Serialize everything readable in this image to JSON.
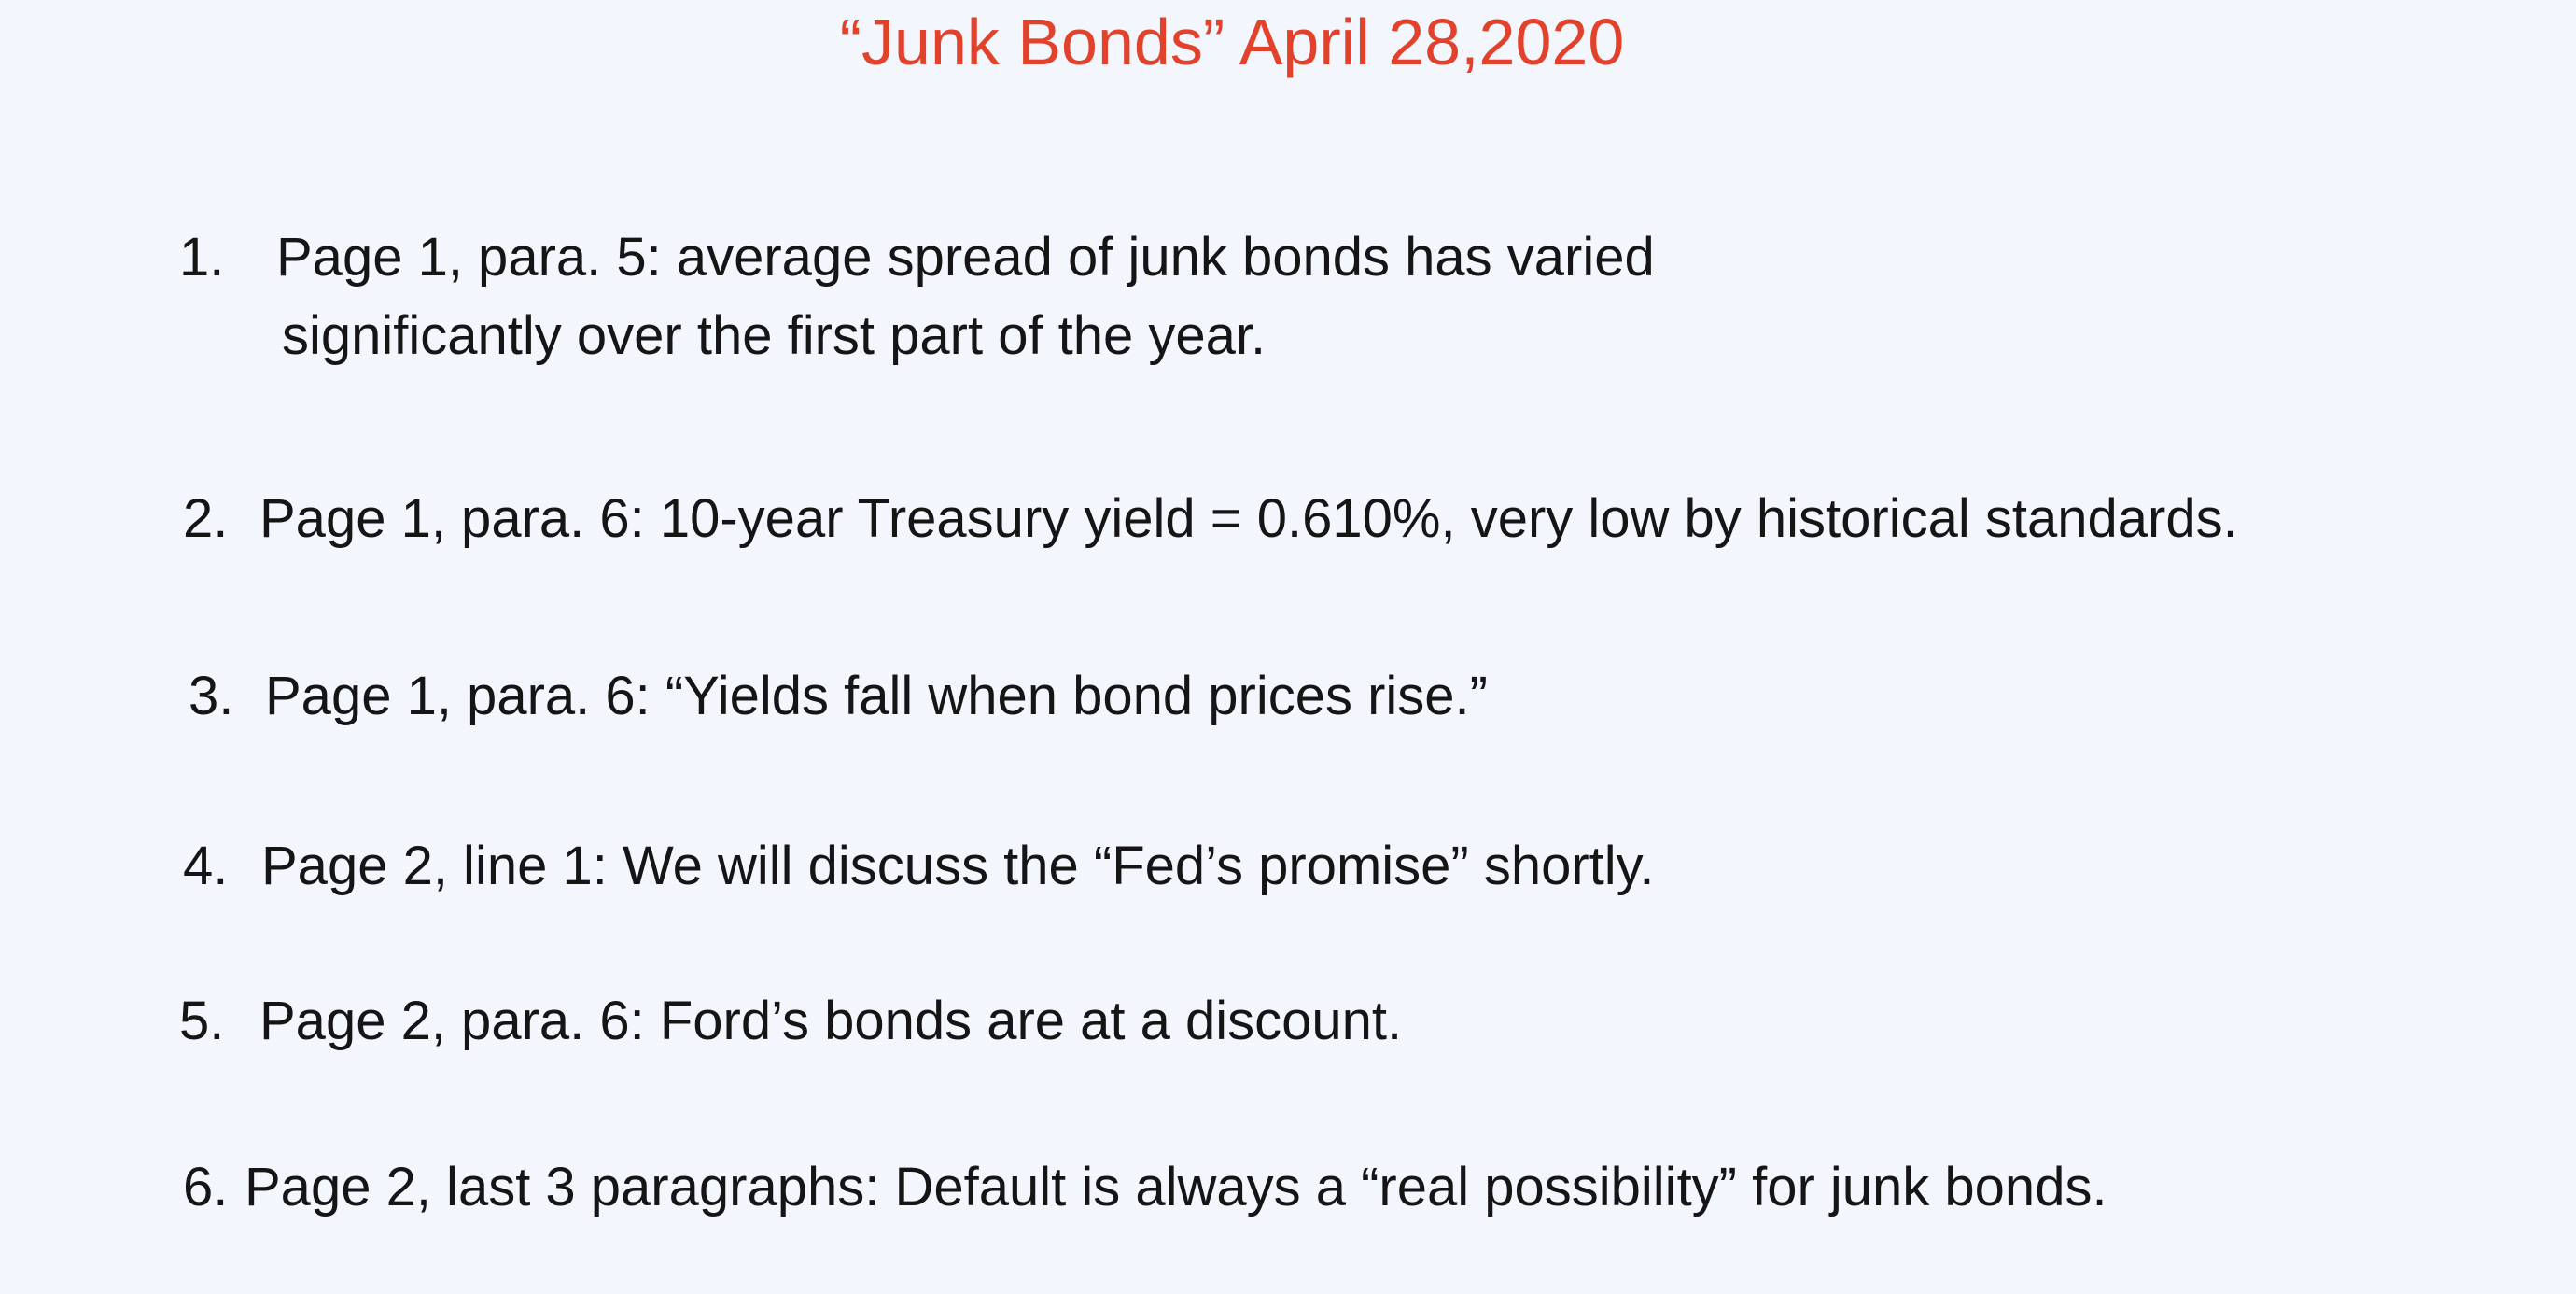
{
  "title": "“Junk Bonds” April 28,2020",
  "items": [
    {
      "number": "1.",
      "text": "Page 1, para. 5:  average spread of junk bonds has varied",
      "continuation": "significantly over the first part of the year."
    },
    {
      "number": "2.",
      "text": "Page 1, para. 6:  10-year Treasury yield = 0.610%, very low by historical standards."
    },
    {
      "number": "3.",
      "text": "Page 1, para. 6:  “Yields fall when bond prices rise.”"
    },
    {
      "number": "4.",
      "text": "Page 2, line 1: We will discuss the “Fed’s promise” shortly."
    },
    {
      "number": "5.",
      "text": "Page 2, para. 6:  Ford’s bonds are at a discount."
    },
    {
      "number": "6.",
      "text": "Page 2, last 3 paragraphs: Default is always a “real possibility” for junk bonds."
    }
  ]
}
